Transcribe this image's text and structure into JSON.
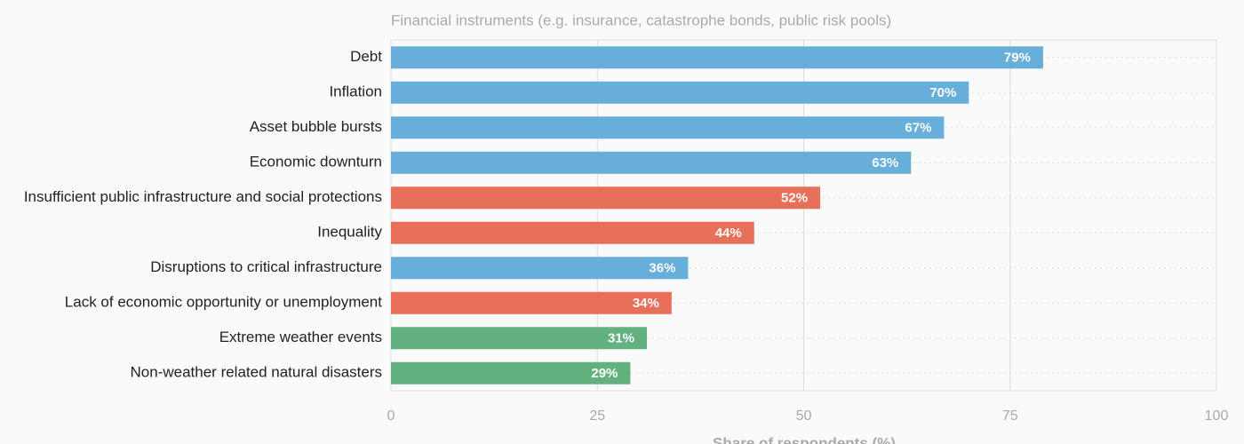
{
  "chart_data": {
    "type": "barh",
    "title": "Financial instruments (e.g. insurance, catastrophe bonds, public risk pools)",
    "x_label": "Share of respondents (%)",
    "categories": [
      "Debt",
      "Inflation",
      "Asset bubble bursts",
      "Economic downturn",
      "Insufficient public infrastructure and social protections",
      "Inequality",
      "Disruptions to critical infrastructure",
      "Lack of economic opportunity or unemployment",
      "Extreme weather events",
      "Non-weather related natural disasters"
    ],
    "values": [
      79,
      70,
      67,
      63,
      52,
      44,
      36,
      34,
      31,
      29
    ],
    "value_labels": [
      "79%",
      "70%",
      "67%",
      "63%",
      "52%",
      "44%",
      "36%",
      "34%",
      "31%",
      "29%"
    ],
    "colors": [
      "#67aedb",
      "#67aedb",
      "#67aedb",
      "#67aedb",
      "#e8705a",
      "#e8705a",
      "#67aedb",
      "#e8705a",
      "#62b17f",
      "#62b17f"
    ],
    "xlim": [
      0,
      100
    ],
    "xticks": [
      0,
      25,
      50,
      75,
      100
    ],
    "grid": true
  }
}
